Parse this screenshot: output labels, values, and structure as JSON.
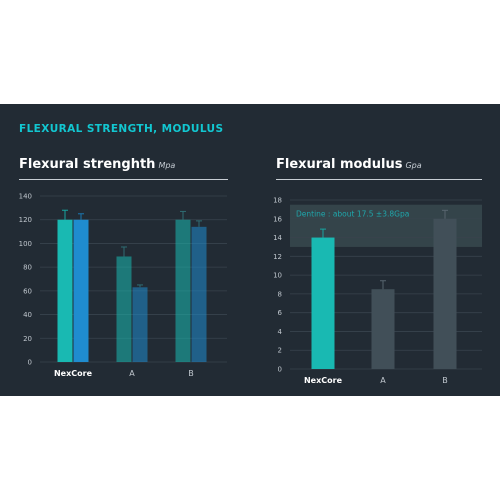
{
  "section_title": "FLEXURAL STRENGTH, MODULUS",
  "charts": {
    "strength": {
      "title": "Flexural strenghth",
      "unit": "Mpa"
    },
    "modulus": {
      "title": "Flexural modulus",
      "unit": "Gpa"
    }
  },
  "colors": {
    "background": "#222b34",
    "accent_text": "#12c7d1",
    "teal": "#19b9b2",
    "blue": "#1f8ccf",
    "gray_bar": "#414f58",
    "band": "#3b4d52",
    "band_text": "#1fa6ab"
  },
  "chart_data": [
    {
      "type": "bar",
      "title": "Flexural strenghth",
      "ylabel": "Mpa",
      "categories": [
        "NexCore",
        "A",
        "B"
      ],
      "series": [
        {
          "values": [
            120,
            89,
            120
          ],
          "errors": [
            8,
            8,
            7
          ]
        },
        {
          "values": [
            120,
            63,
            114
          ],
          "errors": [
            5,
            2,
            5
          ]
        }
      ],
      "ylim": [
        0,
        140
      ],
      "yticks": [
        0,
        20,
        40,
        60,
        80,
        100,
        120,
        140
      ],
      "grid": true
    },
    {
      "type": "bar",
      "title": "Flexural modulus",
      "ylabel": "Gpa",
      "categories": [
        "NexCore",
        "A",
        "B"
      ],
      "values": [
        14,
        8.5,
        16
      ],
      "errors": [
        0.9,
        0.9,
        0.9
      ],
      "ylim": [
        0,
        18
      ],
      "yticks": [
        0,
        2,
        4,
        6,
        8,
        10,
        12,
        14,
        16,
        18
      ],
      "band": {
        "from": 13,
        "to": 17.5,
        "label": "Dentine : about 17.5 ±3.8Gpa"
      },
      "grid": true
    }
  ]
}
